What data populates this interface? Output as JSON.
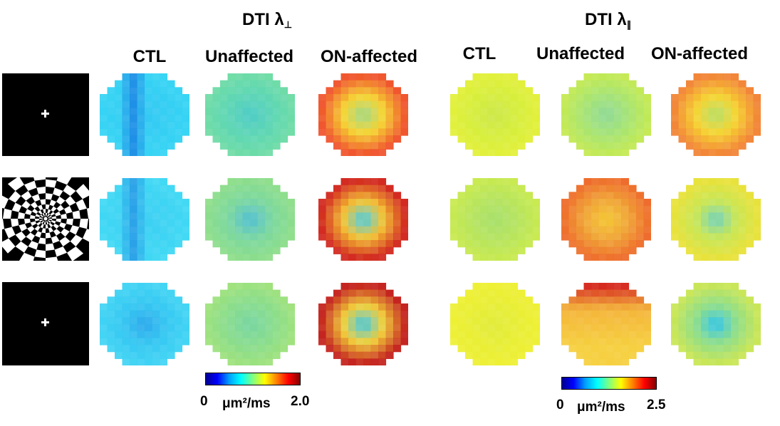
{
  "groups": [
    {
      "title_main": "DTI λ",
      "title_sub": "⊥",
      "columns": [
        "CTL",
        "Unaffected",
        "ON-affected"
      ]
    },
    {
      "title_main": "DTI λ",
      "title_sub": "∥",
      "columns": [
        "CTL",
        "Unaffected",
        "ON-affected"
      ]
    }
  ],
  "stimuli": [
    {
      "name": "fixation-cross",
      "glyph": "+"
    },
    {
      "name": "checkerboard",
      "glyph": ""
    },
    {
      "name": "fixation-cross",
      "glyph": "+"
    }
  ],
  "colorbars": [
    {
      "min": "0",
      "max": "2.0",
      "unit": "μm²/ms"
    },
    {
      "min": "0",
      "max": "2.5",
      "unit": "μm²/ms"
    }
  ],
  "colormap": [
    "#00008f",
    "#0000ff",
    "#00a0ff",
    "#00ffff",
    "#80ff80",
    "#ffff00",
    "#ff8000",
    "#ff0000",
    "#800000"
  ],
  "maps": [
    {
      "base": "#33c8f2",
      "center": "#29b0ea",
      "rim": "#36d4f4",
      "pattern": "vstripe",
      "stripe": "#1e90e6"
    },
    {
      "base": "#5dd6b4",
      "center": "#4fccc8",
      "rim": "#6fdca6",
      "pattern": "flat"
    },
    {
      "base": "#f6d431",
      "center": "#9ed98a",
      "rim": "#f0542c",
      "pattern": "ring"
    },
    {
      "base": "#d6ee3e",
      "center": "#cde84b",
      "rim": "#e2f03a",
      "pattern": "flat"
    },
    {
      "base": "#a7e474",
      "center": "#8fd99a",
      "rim": "#c4ea52",
      "pattern": "flat"
    },
    {
      "base": "#f6d431",
      "center": "#b4e06a",
      "rim": "#f28436",
      "pattern": "ring"
    },
    {
      "base": "#3ccff2",
      "center": "#26aeea",
      "rim": "#40d8f4",
      "pattern": "vstripe",
      "stripe": "#2aa2e8"
    },
    {
      "base": "#7cd89e",
      "center": "#52bfd4",
      "rim": "#8ede8a",
      "pattern": "flat"
    },
    {
      "base": "#f4c232",
      "center": "#46cde8",
      "rim": "#d2281e",
      "pattern": "ring"
    },
    {
      "base": "#b6e45f",
      "center": "#a8e06c",
      "rim": "#c8ea4e",
      "pattern": "flat"
    },
    {
      "base": "#f0a437",
      "center": "#f4c936",
      "rim": "#ee6a2a",
      "pattern": "flat"
    },
    {
      "base": "#c7e656",
      "center": "#6fd2c0",
      "rim": "#e8e23a",
      "pattern": "ring"
    },
    {
      "base": "#36c8f2",
      "center": "#2ea8ec",
      "rim": "#42d4f4",
      "pattern": "flat"
    },
    {
      "base": "#88dc8e",
      "center": "#78d6a4",
      "rim": "#9ee27c",
      "pattern": "flat"
    },
    {
      "base": "#f2cf38",
      "center": "#3cc8ea",
      "rim": "#c4221c",
      "pattern": "ring"
    },
    {
      "base": "#e8ee36",
      "center": "#e2ec3c",
      "rim": "#eef034",
      "pattern": "flat"
    },
    {
      "base": "#f4b43a",
      "center": "#f6d040",
      "rim": "#d62a1e",
      "pattern": "topred"
    },
    {
      "base": "#8cdd8c",
      "center": "#30c4ee",
      "rim": "#c8e656",
      "pattern": "ring"
    }
  ]
}
